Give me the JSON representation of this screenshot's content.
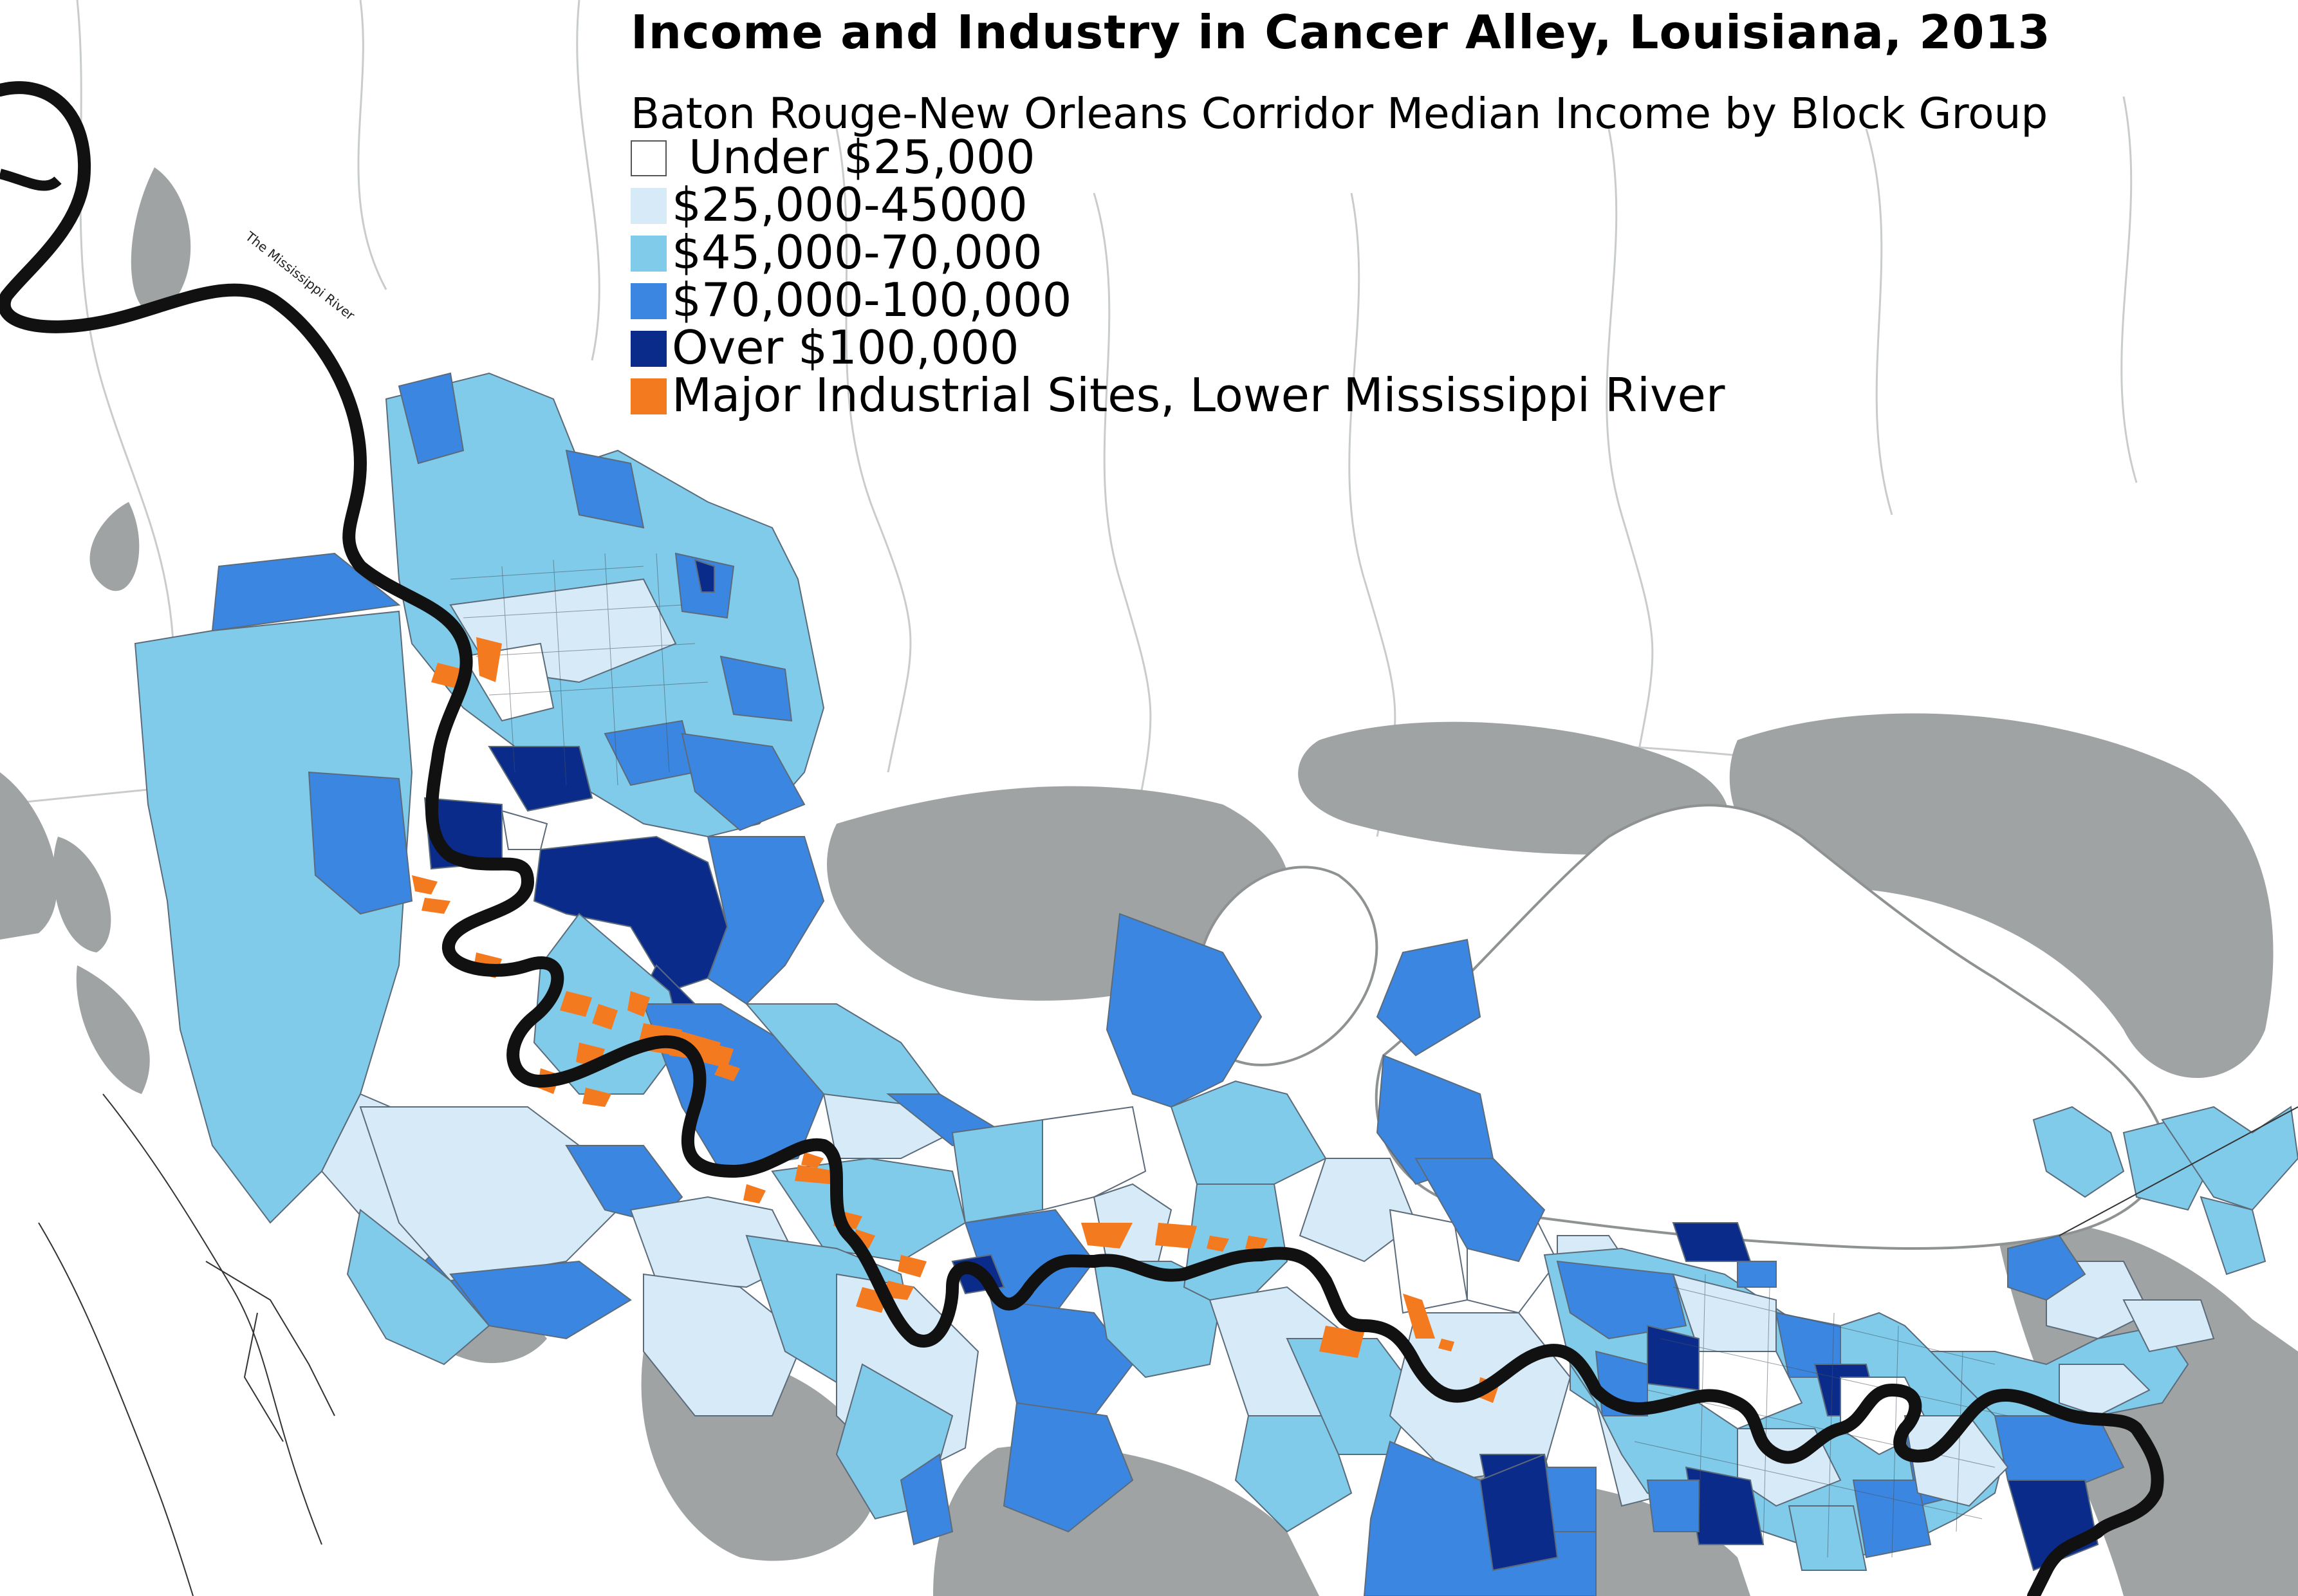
{
  "title": "Income and Industry in Cancer Alley, Louisiana, 2013",
  "subtitle": "Baton Rouge-New Orleans Corridor Median Income by Block Group",
  "river_label": "The Mississippi River",
  "legend": [
    {
      "label": "Under $25,000",
      "color": "#ffffff",
      "border": "#555555"
    },
    {
      "label": "$25,000-45000",
      "color": "#d6ebf7"
    },
    {
      "label": "$45,000-70,000",
      "color": "#80cbea"
    },
    {
      "label": "$70,000-100,000",
      "color": "#3b86e0"
    },
    {
      "label": "Over $100,000",
      "color": "#0b2b8a"
    },
    {
      "label": "Major Industrial Sites, Lower Mississippi River",
      "color": "#f47a20"
    }
  ],
  "colors": {
    "water": "#9fa3a4",
    "river": "#111111",
    "background": "#ffffff"
  }
}
